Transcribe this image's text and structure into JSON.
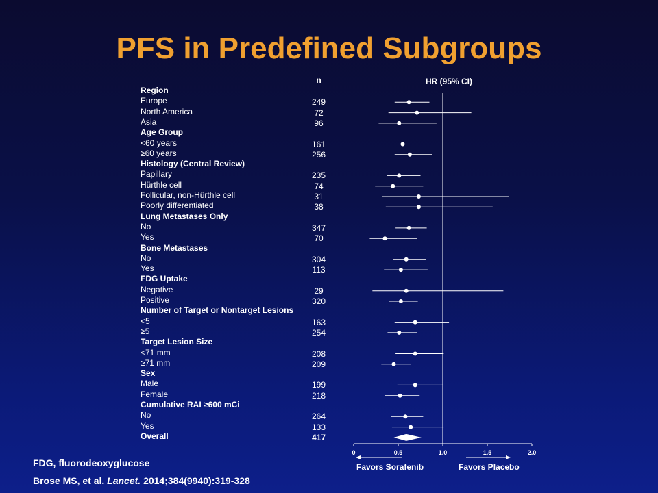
{
  "title": "PFS in Predefined Subgroups",
  "n_header": "n",
  "hr_header": "HR (95% CI)",
  "favors_left": "Favors Sorafenib",
  "favors_right": "Favors Placebo",
  "footer": {
    "abbrev": "FDG, fluorodeoxyglucose",
    "cite_authors": "Brose MS, et al.",
    "cite_journal": "Lancet.",
    "cite_rest": "2014;384(9940):319-328"
  },
  "colors": {
    "title": "#f0a030",
    "text": "#ffffff",
    "background_top": "#0b0b30",
    "background_bottom": "#0d1f8a"
  },
  "chart_data": {
    "type": "forest",
    "xlim": [
      0,
      2.0
    ],
    "xticks": [
      "0",
      "0.5",
      "1.0",
      "1.5",
      "2.0"
    ],
    "reference_line": 1.0,
    "rows": [
      {
        "label": "Region",
        "kind": "header"
      },
      {
        "label": "Europe",
        "n": "249",
        "hr": 0.62,
        "lo": 0.46,
        "hi": 0.85
      },
      {
        "label": "North America",
        "n": "72",
        "hr": 0.71,
        "lo": 0.39,
        "hi": 1.32
      },
      {
        "label": "Asia",
        "n": "96",
        "hr": 0.51,
        "lo": 0.28,
        "hi": 0.93
      },
      {
        "label": "Age Group",
        "kind": "header"
      },
      {
        "label": "<60 years",
        "n": "161",
        "hr": 0.55,
        "lo": 0.39,
        "hi": 0.82
      },
      {
        "label": "≥60 years",
        "n": "256",
        "hr": 0.63,
        "lo": 0.46,
        "hi": 0.88
      },
      {
        "label": "Histology (Central Review)",
        "kind": "header"
      },
      {
        "label": "Papillary",
        "n": "235",
        "hr": 0.51,
        "lo": 0.37,
        "hi": 0.75
      },
      {
        "label": "Hürthle cell",
        "n": "74",
        "hr": 0.44,
        "lo": 0.24,
        "hi": 0.78
      },
      {
        "label": "Follicular, non-Hürthle cell",
        "n": "31",
        "hr": 0.73,
        "lo": 0.32,
        "hi": 1.74
      },
      {
        "label": "Poorly differentiated",
        "n": "38",
        "hr": 0.73,
        "lo": 0.36,
        "hi": 1.56
      },
      {
        "label": "Lung Metastases Only",
        "kind": "header"
      },
      {
        "label": "No",
        "n": "347",
        "hr": 0.62,
        "lo": 0.47,
        "hi": 0.82
      },
      {
        "label": "Yes",
        "n": "70",
        "hr": 0.35,
        "lo": 0.18,
        "hi": 0.71
      },
      {
        "label": "Bone Metastases",
        "kind": "header"
      },
      {
        "label": "No",
        "n": "304",
        "hr": 0.59,
        "lo": 0.44,
        "hi": 0.81
      },
      {
        "label": "Yes",
        "n": "113",
        "hr": 0.53,
        "lo": 0.34,
        "hi": 0.83
      },
      {
        "label": "FDG Uptake",
        "kind": "header"
      },
      {
        "label": "Negative",
        "n": "29",
        "hr": 0.59,
        "lo": 0.21,
        "hi": 1.68
      },
      {
        "label": "Positive",
        "n": "320",
        "hr": 0.53,
        "lo": 0.4,
        "hi": 0.72
      },
      {
        "label": "Number of Target or Nontarget Lesions",
        "kind": "header"
      },
      {
        "label": "<5",
        "n": "163",
        "hr": 0.69,
        "lo": 0.46,
        "hi": 1.07
      },
      {
        "label": "≥5",
        "n": "254",
        "hr": 0.51,
        "lo": 0.38,
        "hi": 0.71
      },
      {
        "label": "Target Lesion Size",
        "kind": "header"
      },
      {
        "label": "<71 mm",
        "n": "208",
        "hr": 0.69,
        "lo": 0.47,
        "hi": 1.01
      },
      {
        "label": "≥71 mm",
        "n": "209",
        "hr": 0.45,
        "lo": 0.31,
        "hi": 0.64
      },
      {
        "label": "Sex",
        "kind": "header"
      },
      {
        "label": "Male",
        "n": "199",
        "hr": 0.69,
        "lo": 0.49,
        "hi": 1.0
      },
      {
        "label": "Female",
        "n": "218",
        "hr": 0.52,
        "lo": 0.35,
        "hi": 0.74
      },
      {
        "label": "Cumulative RAI ≥600 mCi",
        "kind": "header"
      },
      {
        "label": "No",
        "n": "264",
        "hr": 0.58,
        "lo": 0.42,
        "hi": 0.78
      },
      {
        "label": "Yes",
        "n": "133",
        "hr": 0.64,
        "lo": 0.43,
        "hi": 1.01
      },
      {
        "label": "Overall",
        "n": "417",
        "hr": 0.59,
        "lo": 0.45,
        "hi": 0.76,
        "kind": "overall"
      }
    ]
  }
}
